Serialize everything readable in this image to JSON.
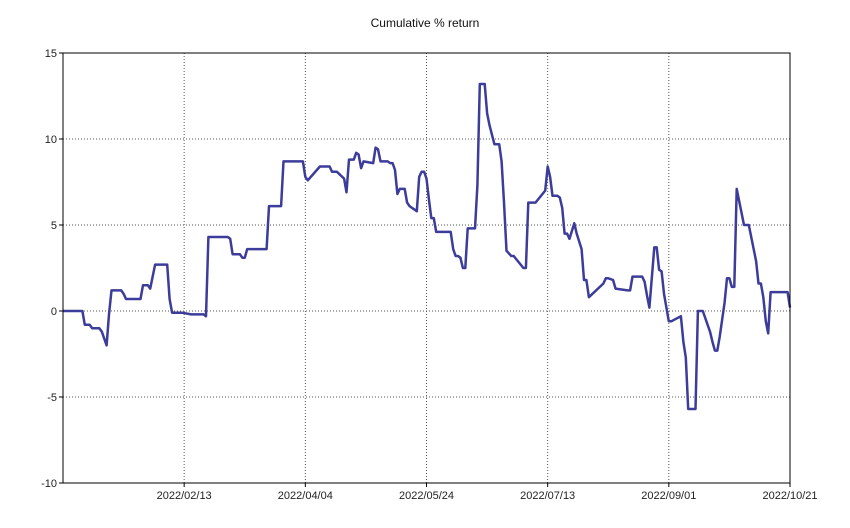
{
  "chart_data": {
    "type": "line",
    "title": "Cumulative % return",
    "xlabel": "",
    "ylabel": "",
    "x_range": [
      "2021-12-25",
      "2022-10-21"
    ],
    "ylim": [
      -10,
      15
    ],
    "y_ticks": [
      15,
      10,
      5,
      0,
      -5,
      -10
    ],
    "x_ticks": [
      "2022/02/13",
      "2022/04/04",
      "2022/05/24",
      "2022/07/13",
      "2022/09/01",
      "2022/10/21"
    ],
    "grid": true,
    "legend": "none",
    "colors": {
      "line": "#3c3c9b",
      "grid": "#555555",
      "axis": "#000000"
    },
    "series": [
      {
        "x": [
          "2021-12-25",
          "2022-01-02",
          "2022-01-03",
          "2022-01-05",
          "2022-01-06",
          "2022-01-09",
          "2022-01-10",
          "2022-01-11",
          "2022-01-12",
          "2022-01-13",
          "2022-01-14",
          "2022-01-18",
          "2022-01-19",
          "2022-01-20",
          "2022-01-26",
          "2022-01-27",
          "2022-01-29",
          "2022-01-30",
          "2022-02-01",
          "2022-02-02",
          "2022-02-06",
          "2022-02-07",
          "2022-02-08",
          "2022-02-12",
          "2022-02-16",
          "2022-02-17",
          "2022-02-21",
          "2022-02-22",
          "2022-02-23",
          "2022-02-24",
          "2022-03-03",
          "2022-03-04",
          "2022-03-05",
          "2022-03-08",
          "2022-03-09",
          "2022-03-10",
          "2022-03-11",
          "2022-03-18",
          "2022-03-19",
          "2022-03-20",
          "2022-03-25",
          "2022-03-26",
          "2022-03-28",
          "2022-03-29",
          "2022-04-03",
          "2022-04-04",
          "2022-04-05",
          "2022-04-10",
          "2022-04-12",
          "2022-04-13",
          "2022-04-14",
          "2022-04-15",
          "2022-04-16",
          "2022-04-17",
          "2022-04-20",
          "2022-04-21",
          "2022-04-22",
          "2022-04-23",
          "2022-04-24",
          "2022-04-25",
          "2022-04-26",
          "2022-04-27",
          "2022-04-28",
          "2022-05-02",
          "2022-05-03",
          "2022-05-04",
          "2022-05-05",
          "2022-05-06",
          "2022-05-08",
          "2022-05-09",
          "2022-05-10",
          "2022-05-11",
          "2022-05-12",
          "2022-05-13",
          "2022-05-14",
          "2022-05-15",
          "2022-05-16",
          "2022-05-17",
          "2022-05-20",
          "2022-05-21",
          "2022-05-22",
          "2022-05-23",
          "2022-05-24",
          "2022-05-25",
          "2022-05-26",
          "2022-05-27",
          "2022-05-28",
          "2022-05-29",
          "2022-06-03",
          "2022-06-04",
          "2022-06-05",
          "2022-06-06",
          "2022-06-07",
          "2022-06-08",
          "2022-06-09",
          "2022-06-10",
          "2022-06-11",
          "2022-06-12",
          "2022-06-13",
          "2022-06-14",
          "2022-06-15",
          "2022-06-17",
          "2022-06-18",
          "2022-06-19",
          "2022-06-21",
          "2022-06-22",
          "2022-06-23",
          "2022-06-24",
          "2022-06-25",
          "2022-06-26",
          "2022-06-28",
          "2022-06-29",
          "2022-07-03",
          "2022-07-04",
          "2022-07-05",
          "2022-07-06",
          "2022-07-07",
          "2022-07-08",
          "2022-07-12",
          "2022-07-13",
          "2022-07-14",
          "2022-07-15",
          "2022-07-16",
          "2022-07-17",
          "2022-07-18",
          "2022-07-19",
          "2022-07-20",
          "2022-07-21",
          "2022-07-22",
          "2022-07-24",
          "2022-07-25",
          "2022-07-27",
          "2022-07-28",
          "2022-07-29",
          "2022-07-30",
          "2022-08-05",
          "2022-08-06",
          "2022-08-07",
          "2022-08-09",
          "2022-08-10",
          "2022-08-15",
          "2022-08-16",
          "2022-08-17",
          "2022-08-21",
          "2022-08-22",
          "2022-08-23",
          "2022-08-24",
          "2022-08-26",
          "2022-08-27",
          "2022-08-28",
          "2022-08-29",
          "2022-08-30",
          "2022-09-01",
          "2022-09-02",
          "2022-09-06",
          "2022-09-07",
          "2022-09-08",
          "2022-09-09",
          "2022-09-12",
          "2022-09-13",
          "2022-09-14",
          "2022-09-15",
          "2022-09-18",
          "2022-09-19",
          "2022-09-20",
          "2022-09-21",
          "2022-09-22",
          "2022-09-24",
          "2022-09-25",
          "2022-09-26",
          "2022-09-27",
          "2022-09-28",
          "2022-09-29",
          "2022-10-02",
          "2022-10-03",
          "2022-10-04",
          "2022-10-07",
          "2022-10-08",
          "2022-10-09",
          "2022-10-10",
          "2022-10-11",
          "2022-10-12",
          "2022-10-13",
          "2022-10-20",
          "2022-10-21"
        ],
        "y": [
          0.0,
          0.0,
          -0.8,
          -0.8,
          -1.0,
          -1.0,
          -1.2,
          -1.6,
          -2.0,
          -0.2,
          1.2,
          1.2,
          1.0,
          0.7,
          0.7,
          1.5,
          1.5,
          1.3,
          2.7,
          2.7,
          2.7,
          0.7,
          -0.1,
          -0.1,
          -0.2,
          -0.2,
          -0.2,
          -0.3,
          4.3,
          4.3,
          4.3,
          4.2,
          3.3,
          3.3,
          3.1,
          3.1,
          3.6,
          3.6,
          3.6,
          6.1,
          6.1,
          8.7,
          8.7,
          8.7,
          8.7,
          7.8,
          7.6,
          8.4,
          8.4,
          8.4,
          8.4,
          8.1,
          8.1,
          8.1,
          7.7,
          6.9,
          8.8,
          8.8,
          8.8,
          9.2,
          9.1,
          8.3,
          8.7,
          8.6,
          9.5,
          9.4,
          8.7,
          8.7,
          8.7,
          8.6,
          8.6,
          8.2,
          6.8,
          7.1,
          7.1,
          7.1,
          6.3,
          6.1,
          5.8,
          7.8,
          8.1,
          8.1,
          7.7,
          6.5,
          5.4,
          5.4,
          4.6,
          4.6,
          4.6,
          3.6,
          3.2,
          3.2,
          3.1,
          2.5,
          2.5,
          4.8,
          4.8,
          4.8,
          4.8,
          7.3,
          13.2,
          13.2,
          11.5,
          10.8,
          9.7,
          9.7,
          9.7,
          8.7,
          6.3,
          3.5,
          3.2,
          3.2,
          2.5,
          2.5,
          6.3,
          6.3,
          6.3,
          6.3,
          7.0,
          8.4,
          7.8,
          6.7,
          6.7,
          6.7,
          6.6,
          6.0,
          4.5,
          4.5,
          4.2,
          5.1,
          4.5,
          3.6,
          1.8,
          1.8,
          0.8,
          1.6,
          1.9,
          1.9,
          1.8,
          1.3,
          1.2,
          1.2,
          2.0,
          2.0,
          1.7,
          0.9,
          0.2,
          3.7,
          3.7,
          2.4,
          2.3,
          1.0,
          -0.6,
          -0.6,
          -0.3,
          -1.8,
          -2.7,
          -5.7,
          -5.7,
          0.0,
          0.0,
          0.0,
          -1.2,
          -1.8,
          -2.3,
          -2.3,
          -1.5,
          0.5,
          1.9,
          1.9,
          1.4,
          1.4,
          7.1,
          5.0,
          5.0,
          5.0,
          2.9,
          1.6,
          1.6,
          0.8,
          -0.6,
          -1.3,
          1.1,
          1.1,
          0.2
        ]
      }
    ]
  }
}
